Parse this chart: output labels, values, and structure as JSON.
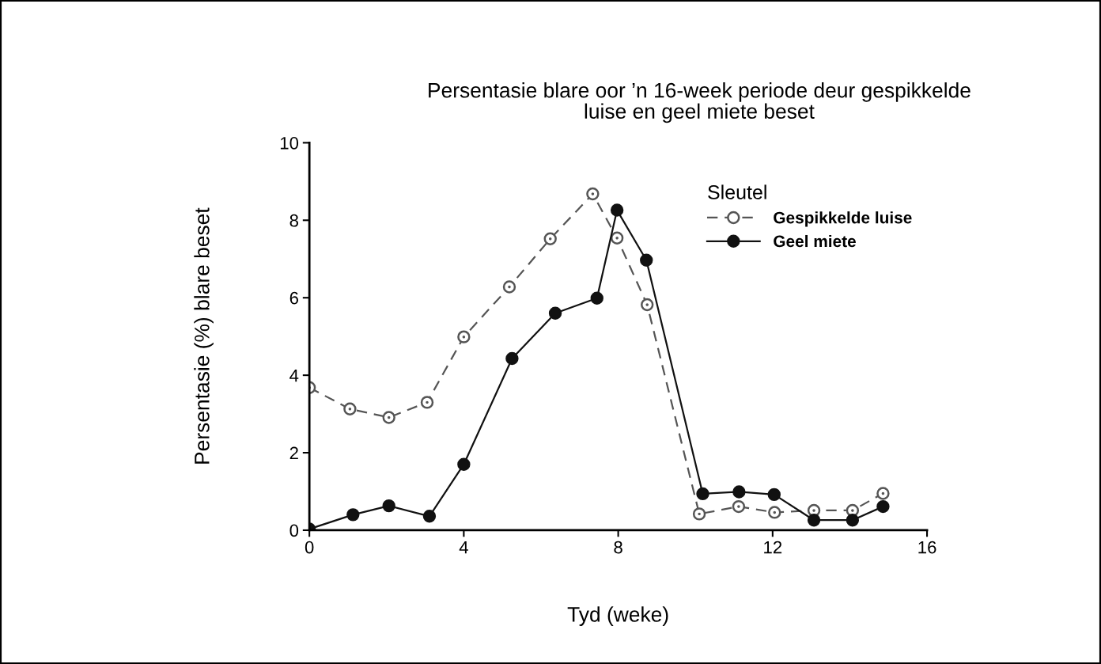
{
  "chart_data": {
    "type": "line",
    "title": "Persentasie blare oor ’n 16-week periode deur gespikkelde\nluise en geel miete beset",
    "xlabel": "Tyd (weke)",
    "ylabel": "Persentasie (%) blare beset",
    "legend_title": "Sleutel",
    "xlim": [
      0,
      16
    ],
    "xticks": [
      0,
      4,
      8,
      12,
      16
    ],
    "ylim": [
      0,
      10
    ],
    "yticks": [
      0,
      2,
      4,
      6,
      8,
      10
    ],
    "grid": false,
    "legend": "top right",
    "marker": "circle",
    "series": [
      {
        "name": "Gespikkelde luise",
        "color": "#555555",
        "line_style": "dashed",
        "x": [
          0,
          1.05,
          2.06,
          3.05,
          4.0,
          5.18,
          6.24,
          7.34,
          7.97,
          8.75,
          10.1,
          11.12,
          12.05,
          13.07,
          14.07,
          14.86
        ],
        "values": [
          3.68,
          3.13,
          2.91,
          3.3,
          4.99,
          6.28,
          7.52,
          8.68,
          7.54,
          5.82,
          0.42,
          0.61,
          0.46,
          0.51,
          0.51,
          0.95
        ]
      },
      {
        "name": "Geel miete",
        "color": "#111111",
        "line_style": "solid",
        "x": [
          0,
          1.13,
          2.06,
          3.11,
          4.0,
          5.25,
          6.37,
          7.45,
          7.97,
          8.73,
          10.19,
          11.13,
          12.04,
          13.07,
          14.07,
          14.86
        ],
        "values": [
          0.03,
          0.4,
          0.63,
          0.36,
          1.7,
          4.43,
          5.6,
          5.99,
          8.26,
          6.97,
          0.94,
          0.99,
          0.92,
          0.26,
          0.26,
          0.61
        ]
      }
    ]
  }
}
